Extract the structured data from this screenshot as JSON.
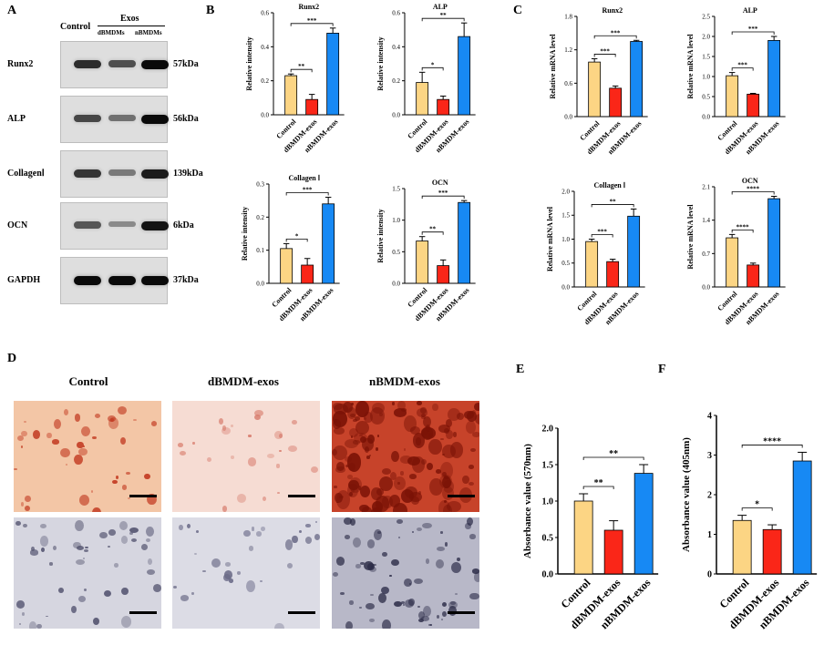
{
  "panels": {
    "a": "A",
    "b": "B",
    "c": "C",
    "d": "D",
    "e": "E",
    "f": "F"
  },
  "western": {
    "control_label": "Control",
    "exos_label": "Exos",
    "lane2": "dBMDMs",
    "lane3": "nBMDMs",
    "proteins": [
      "Runx2",
      "ALP",
      "CollagenⅠ",
      "OCN",
      "GAPDH"
    ],
    "sizes": [
      "57kDa",
      "56kDa",
      "139kDa",
      "6kDa",
      "37kDa"
    ],
    "intensity": [
      [
        0.8,
        0.6,
        1.0
      ],
      [
        0.65,
        0.4,
        1.0
      ],
      [
        0.75,
        0.35,
        0.9
      ],
      [
        0.55,
        0.25,
        0.95
      ],
      [
        1.0,
        1.0,
        1.0
      ]
    ]
  },
  "micrographs": {
    "conditions": [
      "Control",
      "dBMDM-exos",
      "nBMDM-exos"
    ],
    "top_colors": [
      "#f3c6a6",
      "#f6dcd3",
      "#c7432a"
    ],
    "bottom_colors": [
      "#d6d6e0",
      "#dcdce5",
      "#b8b8c8"
    ]
  },
  "colors": {
    "control": "#fcd584",
    "dbmdm": "#fa2618",
    "nbmdm": "#1789f4"
  },
  "chart_data": [
    {
      "id": "B-Runx2",
      "type": "bar",
      "title": "Runx2",
      "ylabel": "Relative intensity",
      "categories": [
        "Control",
        "dBMDM-exos",
        "nBMDM-exos"
      ],
      "values": [
        0.23,
        0.09,
        0.48
      ],
      "errors": [
        0.01,
        0.03,
        0.03
      ],
      "ylim": [
        0,
        0.6
      ],
      "yticks": [
        "0.0",
        "0.2",
        "0.4",
        "0.6"
      ],
      "ytick_values": [
        0,
        0.2,
        0.4,
        0.6
      ],
      "sig": [
        {
          "from": 0,
          "to": 1,
          "label": "**"
        },
        {
          "from": 0,
          "to": 2,
          "label": "***"
        }
      ]
    },
    {
      "id": "B-ALP",
      "type": "bar",
      "title": "ALP",
      "ylabel": "Relative intensity",
      "categories": [
        "Control",
        "dBMDM-exos",
        "nBMDM-exos"
      ],
      "values": [
        0.19,
        0.09,
        0.46
      ],
      "errors": [
        0.06,
        0.02,
        0.08
      ],
      "ylim": [
        0,
        0.6
      ],
      "yticks": [
        "0.0",
        "0.2",
        "0.4",
        "0.6"
      ],
      "ytick_values": [
        0,
        0.2,
        0.4,
        0.6
      ],
      "sig": [
        {
          "from": 0,
          "to": 1,
          "label": "*"
        },
        {
          "from": 0,
          "to": 2,
          "label": "**"
        }
      ]
    },
    {
      "id": "B-Collagen",
      "type": "bar",
      "title": "Collagen Ⅰ",
      "ylabel": "Relative intensity",
      "categories": [
        "Control",
        "dBMDM-exos",
        "nBMDM-exos"
      ],
      "values": [
        0.105,
        0.055,
        0.24
      ],
      "errors": [
        0.015,
        0.02,
        0.02
      ],
      "ylim": [
        0,
        0.3
      ],
      "yticks": [
        "0.0",
        "0.1",
        "0.2",
        "0.3"
      ],
      "ytick_values": [
        0,
        0.1,
        0.2,
        0.3
      ],
      "sig": [
        {
          "from": 0,
          "to": 1,
          "label": "*"
        },
        {
          "from": 0,
          "to": 2,
          "label": "***"
        }
      ]
    },
    {
      "id": "B-OCN",
      "type": "bar",
      "title": "OCN",
      "ylabel": "Relative intensity",
      "categories": [
        "Control",
        "dBMDM-exos",
        "nBMDM-exos"
      ],
      "values": [
        0.67,
        0.28,
        1.28
      ],
      "errors": [
        0.07,
        0.09,
        0.03
      ],
      "ylim": [
        0,
        1.5
      ],
      "yticks": [
        "0.0",
        "0.5",
        "1.0",
        "1.5"
      ],
      "ytick_values": [
        0,
        0.5,
        1.0,
        1.5
      ],
      "sig": [
        {
          "from": 0,
          "to": 1,
          "label": "**"
        },
        {
          "from": 0,
          "to": 2,
          "label": "***"
        }
      ]
    },
    {
      "id": "C-Runx2",
      "type": "bar",
      "title": "Runx2",
      "ylabel": "Relative mRNA level",
      "categories": [
        "Control",
        "dBMDM-exos",
        "nBMDM-exos"
      ],
      "values": [
        0.98,
        0.51,
        1.35
      ],
      "errors": [
        0.06,
        0.04,
        0.02
      ],
      "ylim": [
        0,
        1.8
      ],
      "yticks": [
        "0.0",
        "0.6",
        "1.2",
        "1.8"
      ],
      "ytick_values": [
        0,
        0.6,
        1.2,
        1.8
      ],
      "sig": [
        {
          "from": 0,
          "to": 1,
          "label": "***"
        },
        {
          "from": 0,
          "to": 2,
          "label": "***"
        }
      ]
    },
    {
      "id": "C-ALP",
      "type": "bar",
      "title": "ALP",
      "ylabel": "Relative mRNA level",
      "categories": [
        "Control",
        "dBMDM-exos",
        "nBMDM-exos"
      ],
      "values": [
        1.02,
        0.56,
        1.9
      ],
      "errors": [
        0.08,
        0.02,
        0.1
      ],
      "ylim": [
        0,
        2.5
      ],
      "yticks": [
        "0.0",
        "0.5",
        "1.0",
        "1.5",
        "2.0",
        "2.5"
      ],
      "ytick_values": [
        0,
        0.5,
        1.0,
        1.5,
        2.0,
        2.5
      ],
      "sig": [
        {
          "from": 0,
          "to": 1,
          "label": "***"
        },
        {
          "from": 0,
          "to": 2,
          "label": "***"
        }
      ]
    },
    {
      "id": "C-Collagen",
      "type": "bar",
      "title": "Collagen Ⅰ",
      "ylabel": "Relative mRNA level",
      "categories": [
        "Control",
        "dBMDM-exos",
        "nBMDM-exos"
      ],
      "values": [
        0.95,
        0.53,
        1.48
      ],
      "errors": [
        0.05,
        0.05,
        0.15
      ],
      "ylim": [
        0,
        2.0
      ],
      "yticks": [
        "0.0",
        "0.5",
        "1.0",
        "1.5",
        "2.0"
      ],
      "ytick_values": [
        0,
        0.5,
        1.0,
        1.5,
        2.0
      ],
      "sig": [
        {
          "from": 0,
          "to": 1,
          "label": "***"
        },
        {
          "from": 0,
          "to": 2,
          "label": "**"
        }
      ]
    },
    {
      "id": "C-OCN",
      "type": "bar",
      "title": "OCN",
      "ylabel": "Relative mRNA level",
      "categories": [
        "Control",
        "dBMDM-exos",
        "nBMDM-exos"
      ],
      "values": [
        1.03,
        0.46,
        1.85
      ],
      "errors": [
        0.07,
        0.04,
        0.05
      ],
      "ylim": [
        0,
        2.1
      ],
      "yticks": [
        "0.0",
        "0.7",
        "1.4",
        "2.1"
      ],
      "ytick_values": [
        0,
        0.7,
        1.4,
        2.1
      ],
      "sig": [
        {
          "from": 0,
          "to": 1,
          "label": "****"
        },
        {
          "from": 0,
          "to": 2,
          "label": "****"
        }
      ]
    },
    {
      "id": "E",
      "type": "bar",
      "title": "",
      "ylabel": "Absorbance value (570nm)",
      "categories": [
        "Control",
        "dBMDM-exos",
        "nBMDM-exos"
      ],
      "values": [
        1.0,
        0.6,
        1.38
      ],
      "errors": [
        0.1,
        0.13,
        0.12
      ],
      "ylim": [
        0,
        2.0
      ],
      "yticks": [
        "0.0",
        "0.5",
        "1.0",
        "1.5",
        "2.0"
      ],
      "ytick_values": [
        0,
        0.5,
        1.0,
        1.5,
        2.0
      ],
      "sig": [
        {
          "from": 0,
          "to": 1,
          "label": "**"
        },
        {
          "from": 0,
          "to": 2,
          "label": "**"
        }
      ]
    },
    {
      "id": "F",
      "type": "bar",
      "title": "",
      "ylabel": "Absorbance value (405nm)",
      "categories": [
        "Control",
        "dBMDM-exos",
        "nBMDM-exos"
      ],
      "values": [
        1.35,
        1.12,
        2.85
      ],
      "errors": [
        0.13,
        0.12,
        0.22
      ],
      "ylim": [
        0,
        4
      ],
      "yticks": [
        "0",
        "1",
        "2",
        "3",
        "4"
      ],
      "ytick_values": [
        0,
        1,
        2,
        3,
        4
      ],
      "sig": [
        {
          "from": 0,
          "to": 1,
          "label": "*"
        },
        {
          "from": 0,
          "to": 2,
          "label": "****"
        }
      ]
    }
  ]
}
